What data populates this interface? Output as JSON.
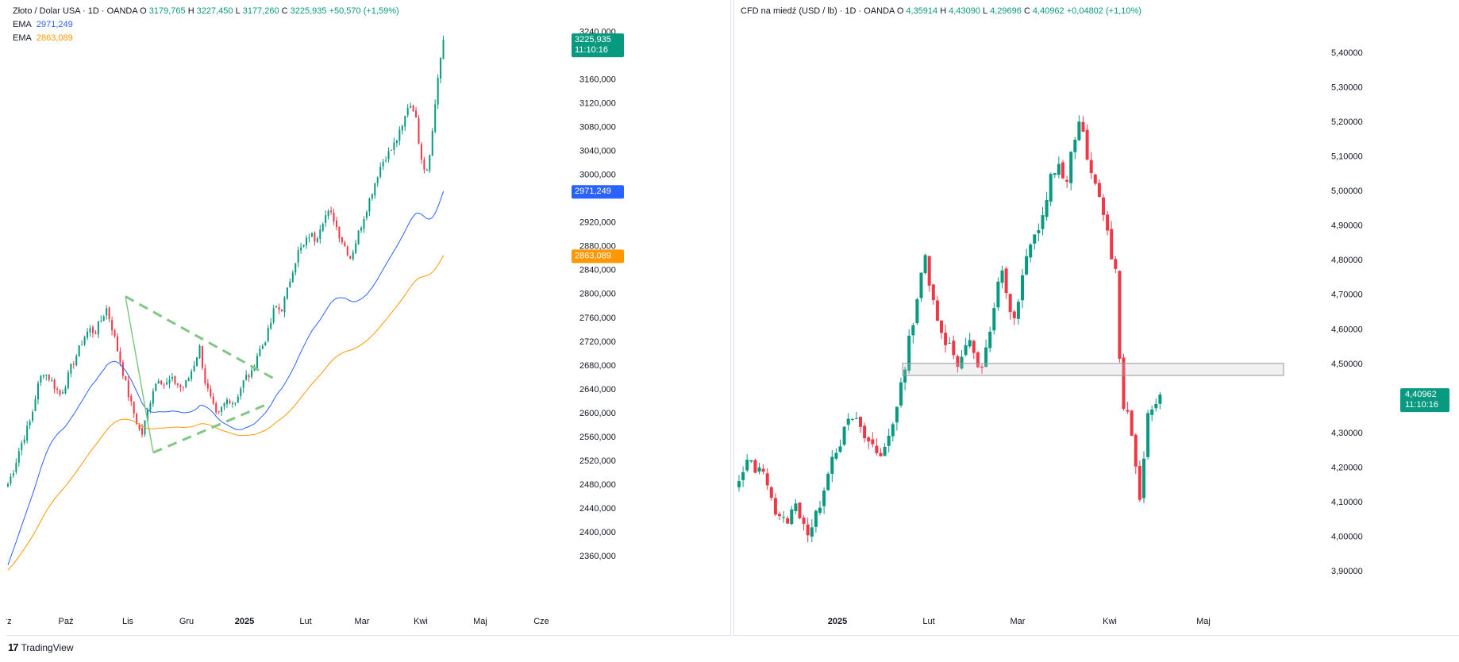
{
  "left_chart": {
    "legend": {
      "symbol": "Złoto / Dolar USA · 1D · OANDA",
      "o_label": "O",
      "o_value": "3179,765",
      "h_label": "H",
      "h_value": "3227,450",
      "l_label": "L",
      "l_value": "3177,260",
      "c_label": "C",
      "c_value": "3225,935",
      "change": "+50,570 (+1,59%)",
      "ema1_label": "EMA",
      "ema1_value": "2971,249",
      "ema2_label": "EMA",
      "ema2_value": "2863,089"
    },
    "colors": {
      "up": "#089981",
      "down": "#f23645",
      "ema1": "#2962ff",
      "ema2": "#ff9800",
      "triangle": "#81c784"
    },
    "price_tag": {
      "price": "3225,935",
      "time": "11:10:16"
    },
    "ema1_tag": "2971,249",
    "ema2_tag": "2863,089"
  },
  "right_chart": {
    "legend": {
      "symbol": "CFD na miedź (USD / lb) · 1D · OANDA",
      "o_label": "O",
      "o_value": "4,35914",
      "h_label": "H",
      "h_value": "4,43090",
      "l_label": "L",
      "l_value": "4,29696",
      "c_label": "C",
      "c_value": "4,40962",
      "change": "+0,04802 (+1,10%)"
    },
    "price_tag": {
      "price": "4,40962",
      "time": "11:10:16"
    }
  },
  "chart_data": [
    {
      "type": "candlestick",
      "title": "Złoto / Dolar USA · 1D · OANDA",
      "y_ticks": [
        "3240,000",
        "3160,000",
        "3120,000",
        "3080,000",
        "3040,000",
        "3000,000",
        "2920,000",
        "2880,000",
        "2840,000",
        "2800,000",
        "2760,000",
        "2720,000",
        "2680,000",
        "2640,000",
        "2600,000",
        "2560,000",
        "2520,000",
        "2480,000",
        "2440,000",
        "2400,000",
        "2360,000"
      ],
      "y_tick_values": [
        3240,
        3160,
        3120,
        3080,
        3040,
        3000,
        2920,
        2880,
        2840,
        2800,
        2760,
        2720,
        2680,
        2640,
        2600,
        2560,
        2520,
        2480,
        2440,
        2400,
        2360
      ],
      "ylim": [
        2320,
        3250
      ],
      "x_ticks": [
        "rz",
        "Paź",
        "Lis",
        "Gru",
        "2025",
        "Lut",
        "Mar",
        "Kwi",
        "Maj",
        "Cze"
      ],
      "x_tick_pos": [
        2,
        75,
        153,
        227,
        300,
        377,
        448,
        522,
        597,
        674
      ],
      "ohlc_anchor_closes": [
        2480,
        2505,
        2540,
        2565,
        2590,
        2640,
        2670,
        2660,
        2645,
        2630,
        2650,
        2680,
        2700,
        2725,
        2740,
        2735,
        2755,
        2775,
        2740,
        2700,
        2660,
        2620,
        2590,
        2560,
        2600,
        2640,
        2660,
        2645,
        2655,
        2650,
        2640,
        2655,
        2680,
        2710,
        2650,
        2620,
        2590,
        2610,
        2625,
        2615,
        2640,
        2660,
        2665,
        2700,
        2715,
        2740,
        2780,
        2770,
        2800,
        2840,
        2870,
        2880,
        2900,
        2890,
        2920,
        2935,
        2930,
        2900,
        2880,
        2860,
        2890,
        2920,
        2950,
        2980,
        3010,
        3030,
        3040,
        3060,
        3080,
        3120,
        3110,
        3040,
        3000,
        3060,
        3160,
        3225.9
      ],
      "ema_fast_last": 2971.249,
      "ema_slow_last": 2863.089,
      "last_close": 3225.935
    },
    {
      "type": "candlestick",
      "title": "CFD na miedź (USD / lb) · 1D · OANDA",
      "y_ticks": [
        "5,40000",
        "5,30000",
        "5,20000",
        "5,10000",
        "5,00000",
        "4,90000",
        "4,80000",
        "4,70000",
        "4,60000",
        "4,50000",
        "4,30000",
        "4,20000",
        "4,10000",
        "4,00000",
        "3,90000"
      ],
      "y_tick_values": [
        5.4,
        5.3,
        5.2,
        5.1,
        5.0,
        4.9,
        4.8,
        4.7,
        4.6,
        4.5,
        4.3,
        4.2,
        4.1,
        4.0,
        3.9
      ],
      "ylim": [
        3.84,
        5.46
      ],
      "x_ticks": [
        "2025",
        "Lut",
        "Mar",
        "Kwi",
        "Maj"
      ],
      "x_tick_pos": [
        130,
        245,
        357,
        473,
        591
      ],
      "ohlc_anchor_closes": [
        4.15,
        4.2,
        4.22,
        4.18,
        4.2,
        4.12,
        4.05,
        4.04,
        4.06,
        4.09,
        4.05,
        4.0,
        4.05,
        4.12,
        4.2,
        4.25,
        4.28,
        4.32,
        4.35,
        4.3,
        4.28,
        4.26,
        4.22,
        4.27,
        4.33,
        4.38,
        4.5,
        4.6,
        4.7,
        4.82,
        4.7,
        4.65,
        4.58,
        4.55,
        4.5,
        4.52,
        4.6,
        4.5,
        4.48,
        4.55,
        4.65,
        4.8,
        4.7,
        4.6,
        4.7,
        4.8,
        4.85,
        4.9,
        4.95,
        5.05,
        5.08,
        5.0,
        5.1,
        5.2,
        5.15,
        5.05,
        5.0,
        4.95,
        4.85,
        4.77,
        4.4,
        4.35,
        4.25,
        4.08,
        4.35,
        4.38,
        4.41
      ],
      "support_zone": [
        4.465,
        4.5
      ],
      "last_close": 4.40962
    }
  ],
  "footer": {
    "brand": "TradingView"
  }
}
